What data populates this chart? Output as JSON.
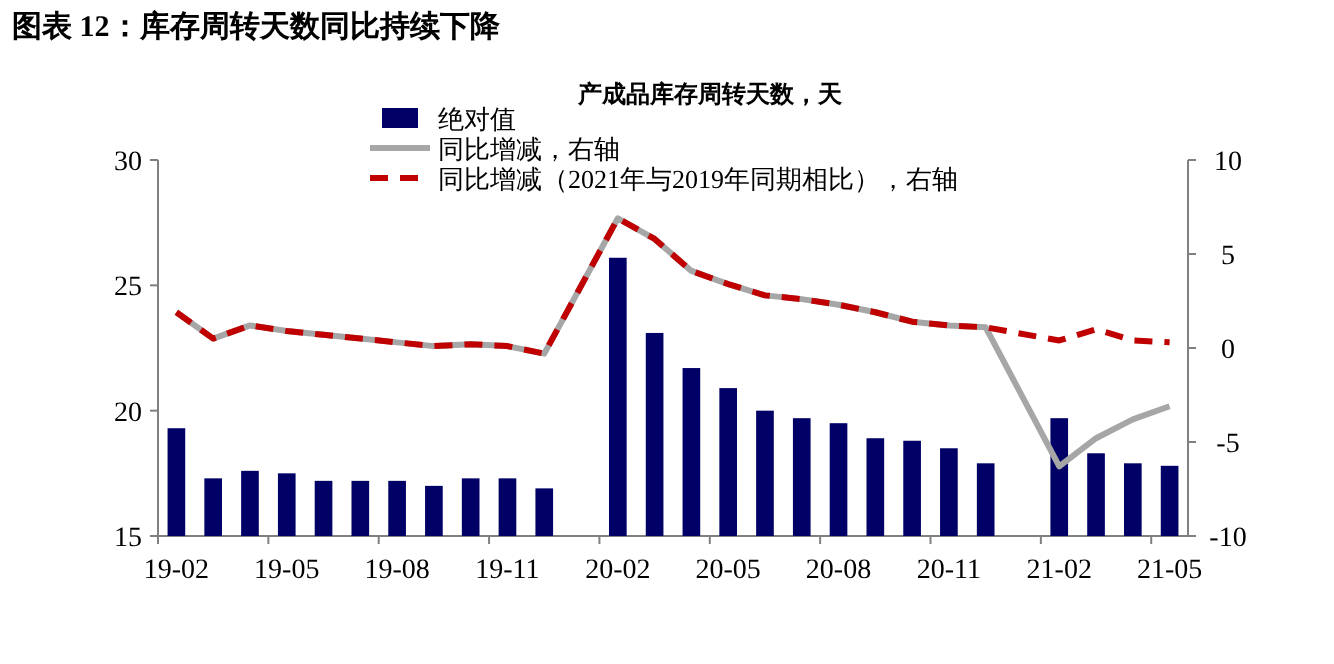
{
  "chart_data": {
    "type": "bar",
    "title": "图表 12：库存周转天数同比持续下降",
    "subtitle": "产成品库存周转天数，天",
    "categories": [
      "19-02",
      null,
      null,
      "19-05",
      null,
      null,
      "19-08",
      null,
      null,
      "19-11",
      null,
      null,
      "20-02",
      null,
      null,
      "20-05",
      null,
      null,
      "20-08",
      null,
      null,
      "20-11",
      null,
      null,
      "21-02",
      null,
      null,
      "21-05"
    ],
    "series": [
      {
        "name": "绝对值",
        "color": "#000066",
        "values": [
          19.3,
          17.3,
          17.6,
          17.5,
          17.2,
          17.2,
          17.2,
          17.0,
          17.3,
          17.3,
          16.9,
          null,
          26.1,
          23.1,
          21.7,
          20.9,
          20.0,
          19.7,
          19.5,
          18.9,
          18.8,
          18.5,
          17.9,
          null,
          19.7,
          18.3,
          17.9,
          17.8
        ]
      },
      {
        "name": "同比增减，右轴",
        "type": "line",
        "axis": "y2",
        "line_style": "solid",
        "color": "#a6a6a6",
        "values": [
          1.9,
          0.5,
          1.2,
          0.9,
          0.7,
          0.5,
          0.3,
          0.1,
          0.2,
          0.1,
          -0.3,
          null,
          6.9,
          5.8,
          4.1,
          3.4,
          2.8,
          2.6,
          2.3,
          1.9,
          1.4,
          1.2,
          1.1,
          null,
          -6.3,
          -4.8,
          -3.8,
          -3.1
        ]
      },
      {
        "name": "同比增减（2021年与2019年同期相比），右轴",
        "type": "line",
        "axis": "y2",
        "line_style": "dashed",
        "color": "#c00000",
        "values": [
          1.9,
          0.5,
          1.2,
          0.9,
          0.7,
          0.5,
          0.3,
          0.1,
          0.2,
          0.1,
          -0.3,
          null,
          6.9,
          5.8,
          4.1,
          3.4,
          2.8,
          2.6,
          2.3,
          1.9,
          1.4,
          1.2,
          1.1,
          null,
          0.4,
          1.0,
          0.4,
          0.3
        ]
      }
    ],
    "ylim": [
      15,
      30
    ],
    "yticks": [
      15,
      20,
      25,
      30
    ],
    "y2lim": [
      -10,
      10
    ],
    "y2ticks": [
      -10,
      -5,
      0,
      5,
      10
    ],
    "legend": "top"
  }
}
